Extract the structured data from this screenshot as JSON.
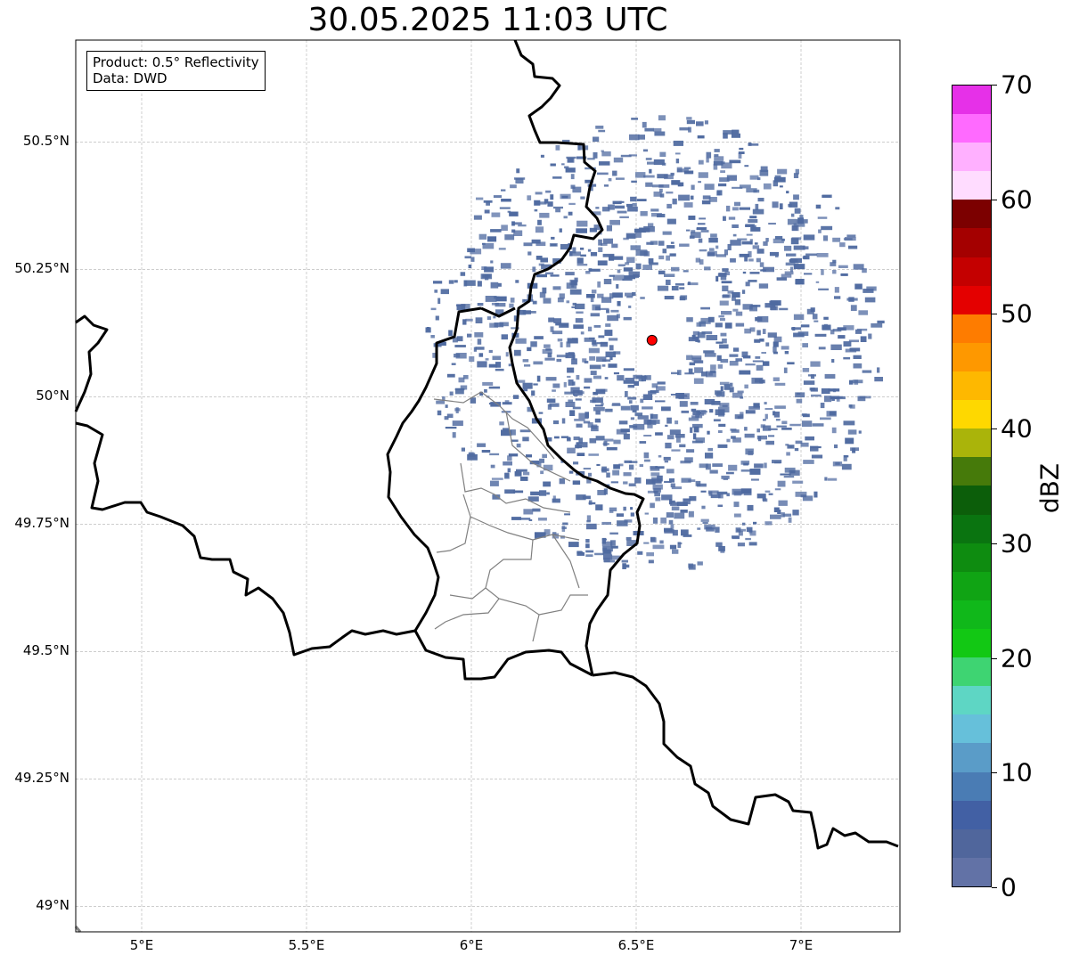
{
  "title": "30.05.2025 11:03 UTC",
  "info": {
    "product": "Product: 0.5° Reflectivity",
    "source": "Data: DWD"
  },
  "map": {
    "lon_range": [
      4.8,
      7.3
    ],
    "lat_range": [
      48.95,
      50.7
    ],
    "radar_site": {
      "lon": 6.548,
      "lat": 50.111,
      "color": "#ff0000"
    },
    "echo_color": "#4f6aa0",
    "border_color": "#000000",
    "admin_border_color": "#808080",
    "grid": true
  },
  "lat_ticks": [
    {
      "value": 50.5,
      "label": "50.5°N"
    },
    {
      "value": 50.25,
      "label": "50.25°N"
    },
    {
      "value": 50.0,
      "label": "50°N"
    },
    {
      "value": 49.75,
      "label": "49.75°N"
    },
    {
      "value": 49.5,
      "label": "49.5°N"
    },
    {
      "value": 49.25,
      "label": "49.25°N"
    },
    {
      "value": 49.0,
      "label": "49°N"
    }
  ],
  "lon_ticks": [
    {
      "value": 5.0,
      "label": "5°E"
    },
    {
      "value": 5.5,
      "label": "5.5°E"
    },
    {
      "value": 6.0,
      "label": "6°E"
    },
    {
      "value": 6.5,
      "label": "6.5°E"
    },
    {
      "value": 7.0,
      "label": "7°E"
    }
  ],
  "colorbar": {
    "unit": "dBZ",
    "min": 0,
    "max": 70,
    "colors": [
      "#6272a6",
      "#50669c",
      "#4260a4",
      "#4a7cb4",
      "#5a9cc8",
      "#66c0da",
      "#5ed6c4",
      "#3ed472",
      "#12c814",
      "#10b81a",
      "#10a414",
      "#0e8c10",
      "#0a7410",
      "#0c5e0a",
      "#467a0a",
      "#aab40a",
      "#fed800",
      "#feb800",
      "#fe9800",
      "#fe7c00",
      "#e40000",
      "#c40000",
      "#a40000",
      "#7c0000",
      "#ffdcff",
      "#ffb0ff",
      "#ff6aff",
      "#e630e8"
    ],
    "ticks": [
      {
        "value": 0,
        "label": "0"
      },
      {
        "value": 10,
        "label": "10"
      },
      {
        "value": 20,
        "label": "20"
      },
      {
        "value": 30,
        "label": "30"
      },
      {
        "value": 40,
        "label": "40"
      },
      {
        "value": 50,
        "label": "50"
      },
      {
        "value": 60,
        "label": "60"
      },
      {
        "value": 70,
        "label": "70"
      }
    ]
  }
}
